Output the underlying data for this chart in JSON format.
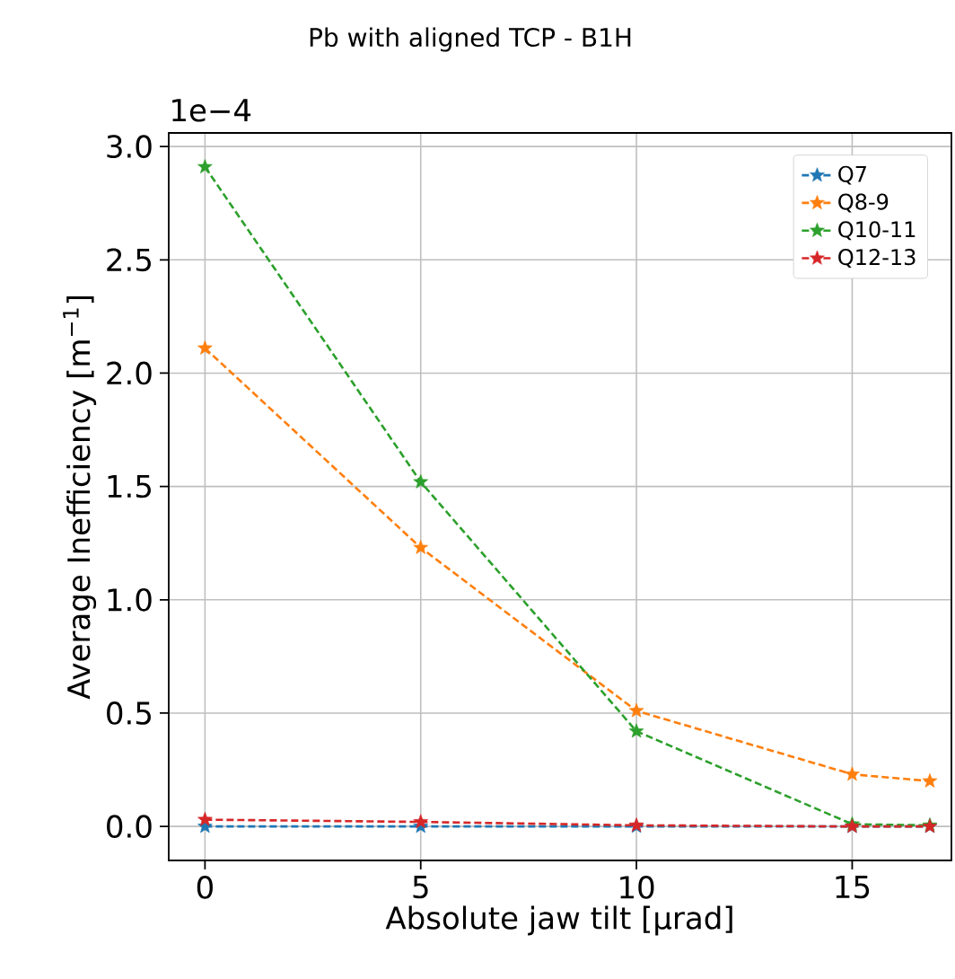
{
  "chart_data": {
    "type": "line",
    "title": "Pb with aligned TCP - B1H",
    "xlabel": "Absolute jaw tilt [µrad]",
    "ylabel": "Average Inefficiency [m$^{−1}$]",
    "annotations": [
      "1e−4"
    ],
    "x": [
      0,
      5,
      10,
      15,
      16.8
    ],
    "series": [
      {
        "name": "Q7",
        "color": "#1f77b4",
        "values": [
          0.0,
          0.0,
          0.0,
          0.0,
          0.0
        ]
      },
      {
        "name": "Q8-9",
        "color": "#ff7f0e",
        "values": [
          2.11,
          1.23,
          0.51,
          0.23,
          0.2
        ]
      },
      {
        "name": "Q10-11",
        "color": "#2ca02c",
        "values": [
          2.91,
          1.52,
          0.42,
          0.01,
          0.005
        ]
      },
      {
        "name": "Q12-13",
        "color": "#d62728",
        "values": [
          0.03,
          0.02,
          0.005,
          0.0,
          0.0
        ]
      }
    ],
    "xlim": [
      -0.84,
      17.3
    ],
    "ylim": [
      -0.15,
      3.06
    ],
    "xticks": [
      0,
      5,
      10,
      15
    ],
    "yticks": [
      {
        "value": 0,
        "label": "0.0"
      },
      {
        "value": 0.5,
        "label": "0.5"
      },
      {
        "value": 1.0,
        "label": "1.0"
      },
      {
        "value": 1.5,
        "label": "1.5"
      },
      {
        "value": 2.0,
        "label": "2.0"
      },
      {
        "value": 2.5,
        "label": "2.5"
      },
      {
        "value": 3.0,
        "label": "3.0"
      }
    ],
    "grid": true,
    "legend": "top right",
    "marker": "star",
    "line_style": "dashed"
  }
}
